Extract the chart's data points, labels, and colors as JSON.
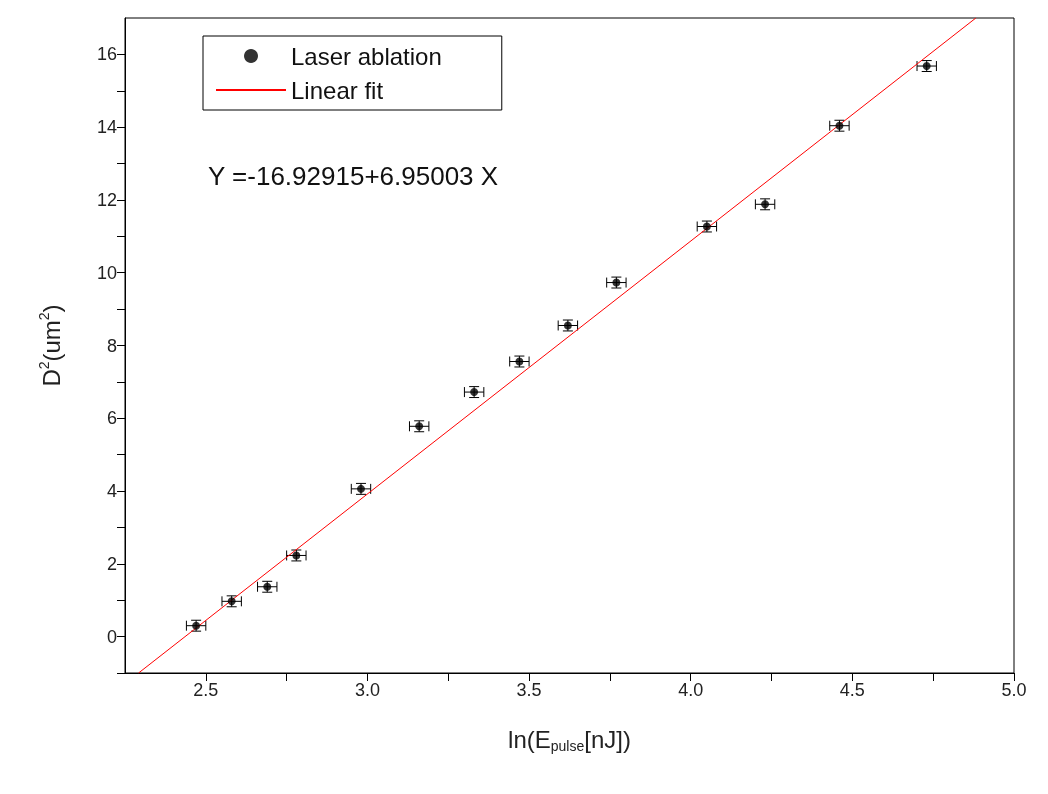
{
  "chart_data": {
    "type": "scatter",
    "xlabel": "ln(E$_{pulse}$[nJ])",
    "ylabel": "D$^{2}$(um$^{2}$)",
    "annotations": [
      "Y =-16.92915+6.95003 X"
    ],
    "xlim": [
      2.25,
      5.0
    ],
    "ylim": [
      -1,
      17
    ],
    "xticks": [
      {
        "value": 2.5,
        "label": "2.5"
      },
      {
        "value": 2.75,
        "label": null
      },
      {
        "value": 3,
        "label": "3.0"
      },
      {
        "value": 3.25,
        "label": null
      },
      {
        "value": 3.5,
        "label": "3.5"
      },
      {
        "value": 3.75,
        "label": null
      },
      {
        "value": 4,
        "label": "4.0"
      },
      {
        "value": 4.25,
        "label": null
      },
      {
        "value": 4.5,
        "label": "4.5"
      },
      {
        "value": 4.75,
        "label": null
      },
      {
        "value": 5,
        "label": "5.0"
      }
    ],
    "yticks": [
      {
        "value": -1,
        "label": null
      },
      0,
      {
        "value": 1,
        "label": null
      },
      2,
      {
        "value": 3,
        "label": null
      },
      4,
      {
        "value": 5,
        "label": null
      },
      6,
      {
        "value": 7,
        "label": null
      },
      8,
      {
        "value": 9,
        "label": null
      },
      10,
      {
        "value": 11,
        "label": null
      },
      12,
      {
        "value": 13,
        "label": null
      },
      14,
      {
        "value": 15,
        "label": null
      },
      16
    ],
    "grid": false,
    "legend": "top left",
    "series": [
      {
        "name": "Laser ablation",
        "color": "#000000",
        "marker": "circle",
        "x": [
          2.47,
          2.58,
          2.69,
          2.78,
          2.98,
          3.16,
          3.33,
          3.47,
          3.62,
          3.77,
          4.05,
          4.23,
          4.46,
          4.73
        ],
        "values": [
          0.3,
          0.97,
          1.37,
          2.23,
          4.06,
          5.78,
          6.72,
          7.56,
          8.55,
          9.73,
          11.27,
          11.88,
          14.04,
          15.68
        ],
        "errors": [
          0.15,
          0.15,
          0.15,
          0.15,
          0.15,
          0.15,
          0.15,
          0.15,
          0.15,
          0.15,
          0.15,
          0.15,
          0.15,
          0.15
        ],
        "xerrors": [
          0.03,
          0.03,
          0.03,
          0.03,
          0.03,
          0.03,
          0.03,
          0.03,
          0.03,
          0.03,
          0.03,
          0.03,
          0.03,
          0.03
        ]
      },
      {
        "name": "Linear fit",
        "type": "line",
        "color": "#ff0000",
        "marker": "none",
        "line_style": "solid",
        "x": [
          2.292,
          4.882
        ],
        "values": [
          -1,
          17
        ]
      }
    ]
  }
}
